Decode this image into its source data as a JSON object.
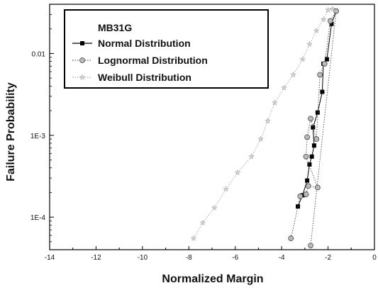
{
  "chart_data": {
    "type": "line",
    "title": "",
    "xlabel": "Normalized Margin",
    "ylabel": "Failure Probability",
    "x_ticks": [
      "-14",
      "-12",
      "-10",
      "-8",
      "-6",
      "-4",
      "-2",
      "0"
    ],
    "y_ticks": [
      {
        "value": 0.0001,
        "label": "1E-4"
      },
      {
        "value": 0.001,
        "label": "1E-3"
      },
      {
        "value": 0.01,
        "label": "0.01"
      }
    ],
    "xlim": [
      -14,
      0
    ],
    "ylim": [
      4e-05,
      0.04
    ],
    "y_scale": "log",
    "grid": false,
    "legend_title": "MB31G",
    "legend_position": "top-left",
    "series": [
      {
        "name": "Normal Distribution",
        "color": "#000000",
        "line": "solid",
        "marker": "square",
        "points": [
          [
            -3.3,
            0.000135
          ],
          [
            -3.1,
            0.000185
          ],
          [
            -2.9,
            0.00028
          ],
          [
            -2.8,
            0.00044
          ],
          [
            -2.7,
            0.00055
          ],
          [
            -2.6,
            0.00075
          ],
          [
            -2.65,
            0.00125
          ],
          [
            -2.45,
            0.0019
          ],
          [
            -2.25,
            0.0034
          ],
          [
            -2.2,
            0.0075
          ],
          [
            -2.05,
            0.0085
          ],
          [
            -1.85,
            0.023
          ],
          [
            -1.65,
            0.033
          ]
        ]
      },
      {
        "name": "Lognormal Distribution",
        "color": "#555555",
        "line": "dotted",
        "marker": "circle",
        "points": [
          [
            -3.6,
            5.5e-05
          ],
          [
            -3.2,
            0.00018
          ],
          [
            -2.95,
            0.00019
          ],
          [
            -2.85,
            0.00024
          ],
          [
            -2.45,
            0.00023
          ],
          [
            -2.95,
            0.00055
          ],
          [
            -2.9,
            0.00095
          ],
          [
            -2.75,
            0.0016
          ],
          [
            -2.5,
            0.0009
          ],
          [
            -2.35,
            0.0055
          ],
          [
            -2.15,
            0.0075
          ],
          [
            -1.9,
            0.025
          ],
          [
            -1.65,
            0.033
          ],
          [
            -2.75,
            4.5e-05
          ]
        ]
      },
      {
        "name": "Weibull Distribution",
        "color": "#aaaaaa",
        "line": "dotted",
        "marker": "star",
        "points": [
          [
            -7.8,
            5.5e-05
          ],
          [
            -7.4,
            8.5e-05
          ],
          [
            -6.9,
            0.00013
          ],
          [
            -6.4,
            0.00022
          ],
          [
            -5.9,
            0.00035
          ],
          [
            -5.3,
            0.00055
          ],
          [
            -4.9,
            0.0009
          ],
          [
            -4.6,
            0.0015
          ],
          [
            -4.3,
            0.0025
          ],
          [
            -3.9,
            0.0038
          ],
          [
            -3.5,
            0.0055
          ],
          [
            -3.1,
            0.0085
          ],
          [
            -2.8,
            0.013
          ],
          [
            -2.5,
            0.019
          ],
          [
            -2.2,
            0.026
          ],
          [
            -2.0,
            0.034
          ],
          [
            -1.8,
            0.035
          ]
        ]
      }
    ]
  }
}
